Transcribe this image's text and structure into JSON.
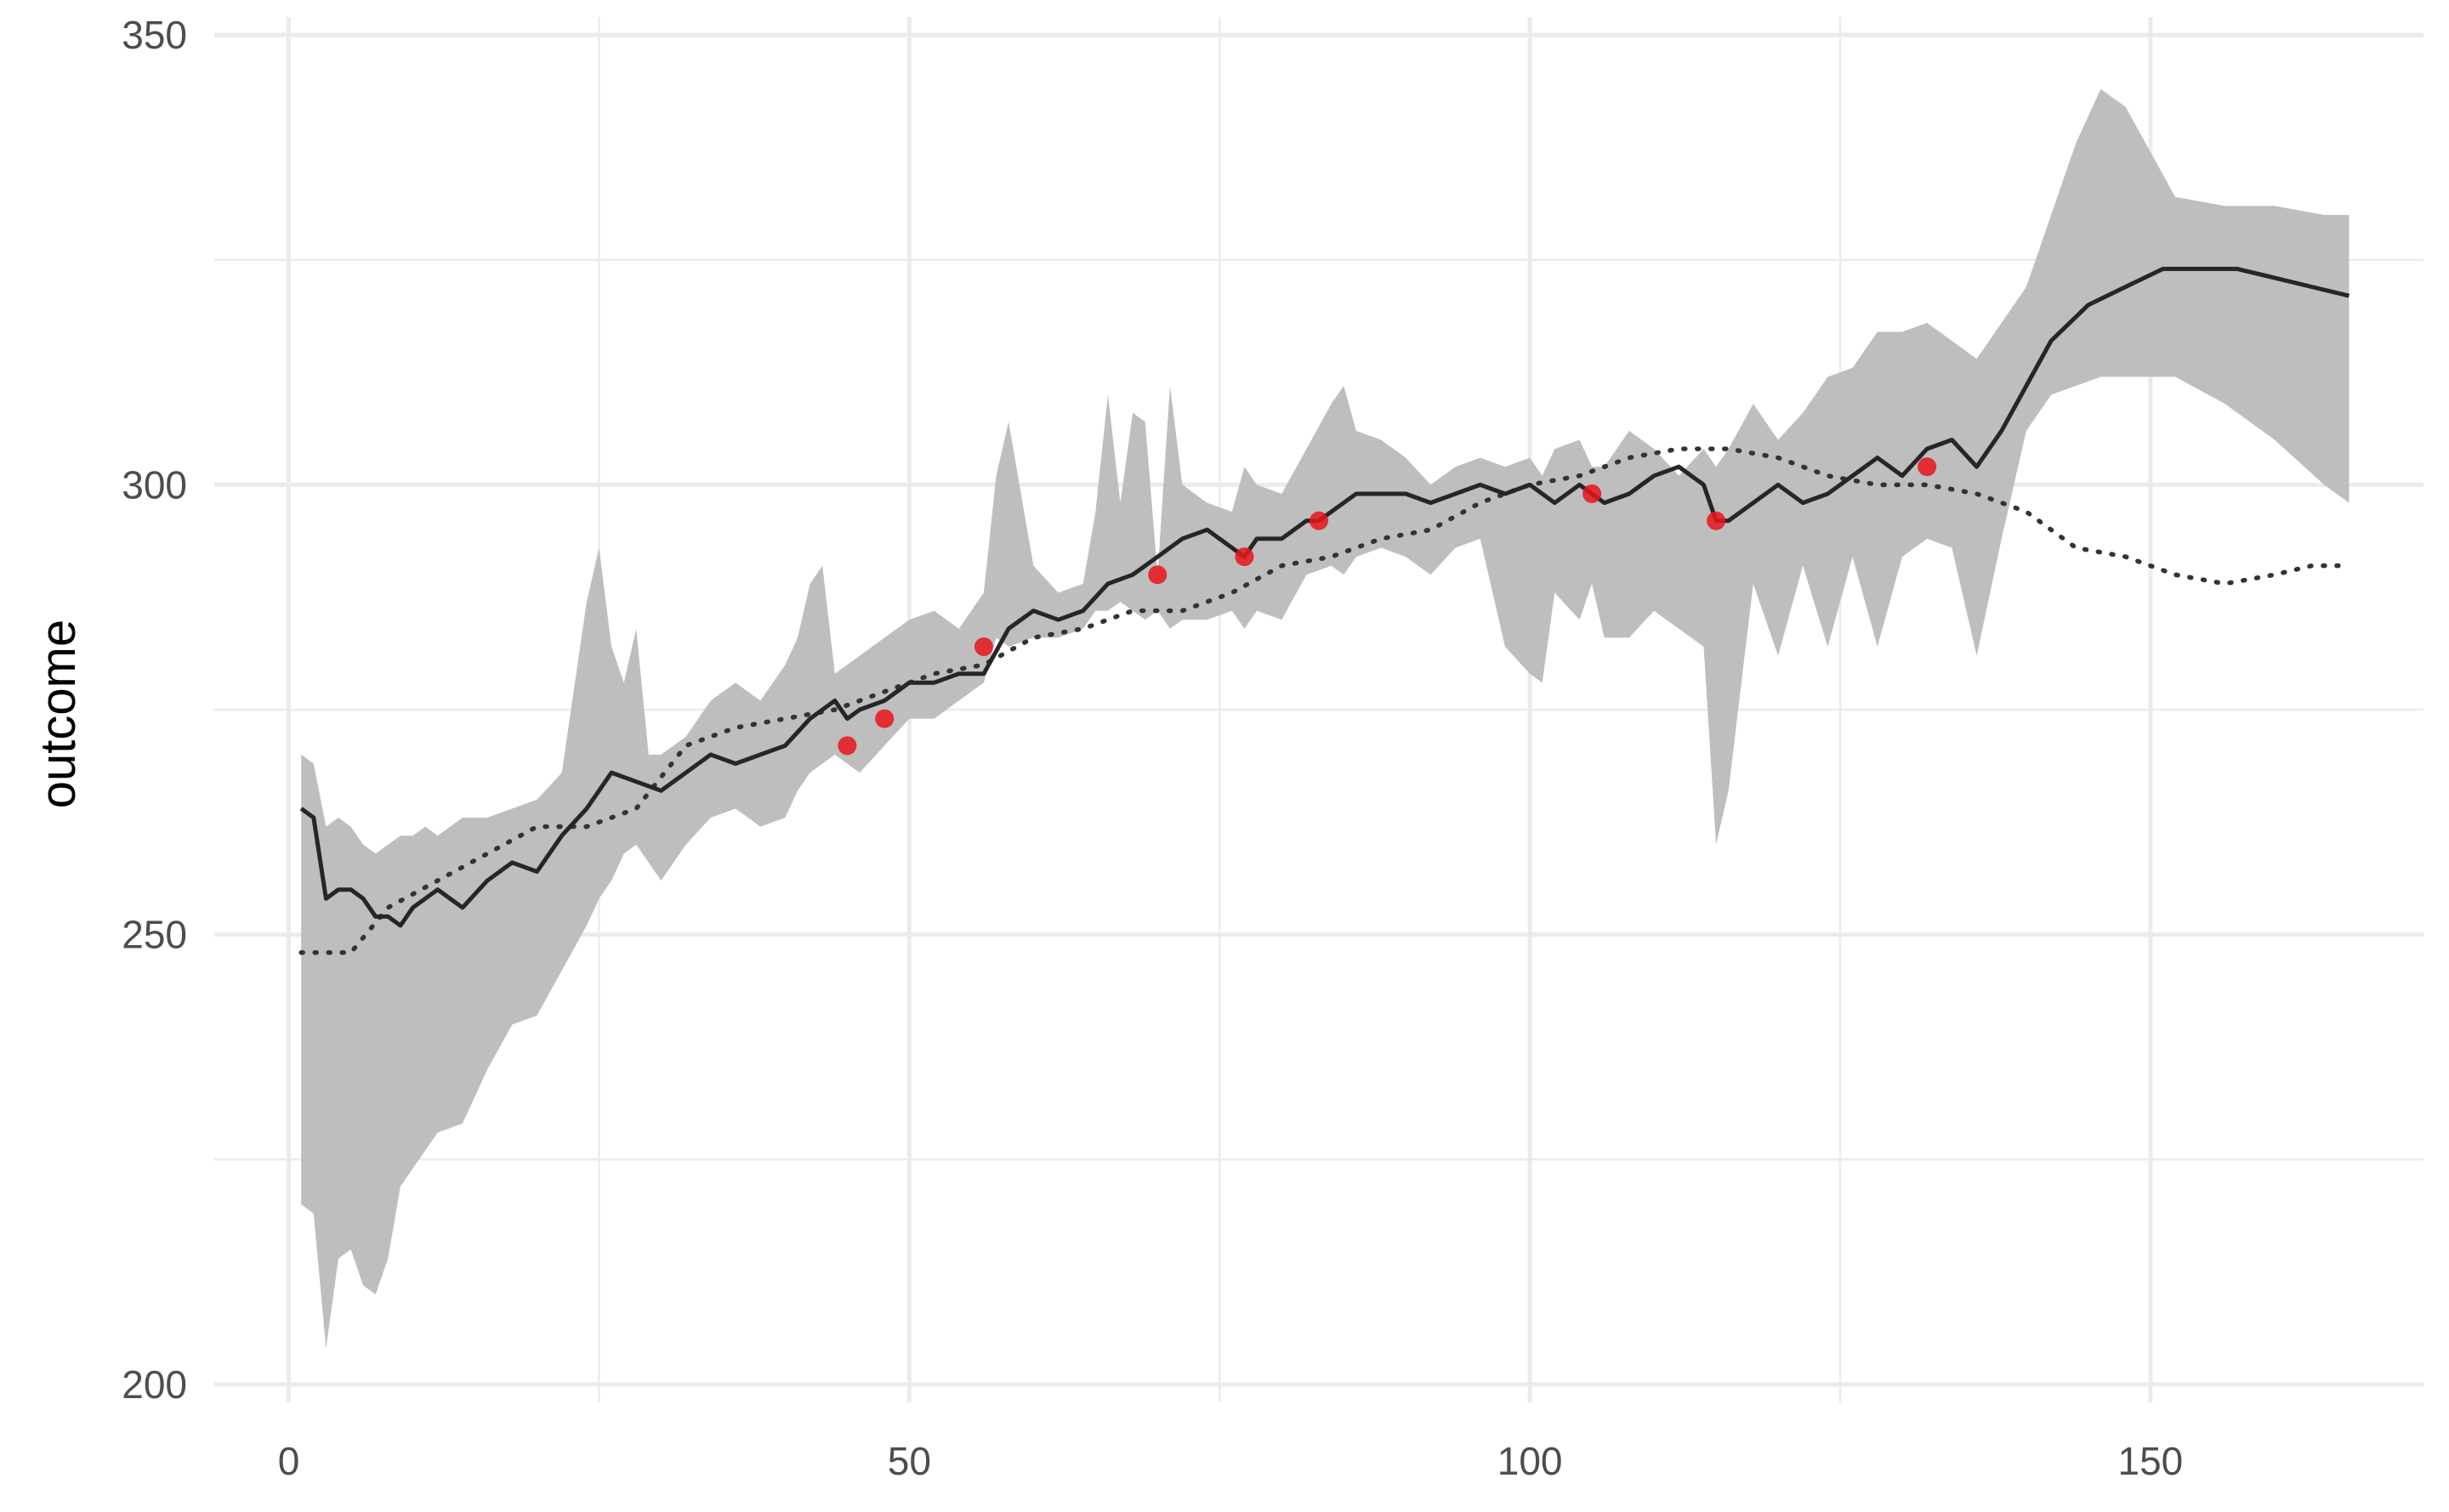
{
  "chart_data": {
    "type": "line",
    "title": "",
    "xlabel": "",
    "ylabel": "outcome",
    "xlim": [
      -6,
      172
    ],
    "ylim": [
      198,
      352
    ],
    "x_ticks": [
      0,
      50,
      100,
      150
    ],
    "x_tick_labels": [
      "0",
      "50",
      "100",
      "150"
    ],
    "x_minor_ticks": [
      25,
      75,
      125
    ],
    "y_ticks": [
      200,
      250,
      300,
      350
    ],
    "y_tick_labels": [
      "200",
      "250",
      "300",
      "350"
    ],
    "y_minor_ticks": [
      225,
      275,
      325
    ],
    "grid": true,
    "colors": {
      "band": "#bebebe",
      "line": "#262626",
      "dotted": "#333333",
      "points": "#e8141c",
      "grid": "#ebebeb"
    },
    "series": [
      {
        "style": "solid",
        "x": [
          1,
          2,
          3,
          4,
          5,
          6,
          7,
          8,
          9,
          10,
          12,
          14,
          16,
          18,
          20,
          22,
          24,
          26,
          28,
          30,
          32,
          34,
          36,
          38,
          40,
          42,
          44,
          45,
          46,
          48,
          50,
          52,
          54,
          56,
          58,
          60,
          62,
          64,
          66,
          68,
          70,
          72,
          74,
          76,
          77,
          78,
          80,
          82,
          83,
          84,
          86,
          88,
          90,
          92,
          94,
          96,
          98,
          100,
          102,
          104,
          105,
          106,
          108,
          110,
          112,
          114,
          115,
          116,
          118,
          120,
          122,
          124,
          126,
          128,
          130,
          132,
          134,
          136,
          138,
          140,
          142,
          145,
          148,
          151,
          154,
          157,
          160,
          163,
          166
        ],
        "values": [
          264,
          263,
          254,
          255,
          255,
          254,
          252,
          252,
          251,
          253,
          255,
          253,
          256,
          258,
          257,
          261,
          264,
          268,
          267,
          266,
          268,
          270,
          269,
          270,
          271,
          274,
          276,
          274,
          275,
          276,
          278,
          278,
          279,
          279,
          284,
          286,
          285,
          286,
          289,
          290,
          292,
          294,
          295,
          293,
          292,
          294,
          294,
          296,
          296,
          297,
          299,
          299,
          299,
          298,
          299,
          300,
          299,
          300,
          298,
          300,
          299,
          298,
          299,
          301,
          302,
          300,
          296,
          296,
          298,
          300,
          298,
          299,
          301,
          303,
          301,
          304,
          305,
          302,
          306,
          311,
          316,
          320,
          322,
          324,
          324,
          324,
          323,
          322,
          321
        ]
      },
      {
        "style": "dotted",
        "x": [
          1,
          5,
          8,
          12,
          16,
          20,
          24,
          28,
          32,
          36,
          40,
          44,
          48,
          52,
          56,
          60,
          64,
          68,
          72,
          76,
          80,
          84,
          88,
          92,
          96,
          100,
          104,
          108,
          112,
          116,
          120,
          124,
          128,
          132,
          136,
          140,
          144,
          148,
          152,
          156,
          160,
          163,
          166
        ],
        "values": [
          248,
          248,
          253,
          256,
          259,
          262,
          262,
          264,
          271,
          273,
          274,
          275,
          277,
          279,
          280,
          283,
          284,
          286,
          286,
          288,
          291,
          292,
          294,
          295,
          298,
          300,
          301,
          303,
          304,
          304,
          303,
          301,
          300,
          300,
          299,
          297,
          293,
          292,
          290,
          289,
          290,
          291,
          291
        ]
      }
    ],
    "band": {
      "x": [
        1,
        2,
        3,
        4,
        5,
        6,
        7,
        8,
        9,
        10,
        11,
        12,
        14,
        16,
        18,
        20,
        22,
        24,
        25,
        26,
        27,
        28,
        29,
        30,
        32,
        34,
        36,
        38,
        40,
        41,
        42,
        43,
        44,
        46,
        48,
        50,
        52,
        54,
        56,
        57,
        58,
        60,
        62,
        64,
        65,
        66,
        67,
        68,
        69,
        70,
        71,
        72,
        74,
        76,
        77,
        78,
        80,
        82,
        84,
        85,
        86,
        88,
        90,
        92,
        94,
        96,
        98,
        100,
        101,
        102,
        104,
        105,
        106,
        108,
        110,
        112,
        114,
        115,
        116,
        118,
        120,
        122,
        124,
        126,
        128,
        130,
        132,
        134,
        136,
        138,
        140,
        142,
        144,
        146,
        148,
        150,
        152,
        156,
        160,
        164,
        166
      ],
      "upper": [
        270,
        269,
        262,
        263,
        262,
        260,
        259,
        260,
        261,
        261,
        262,
        261,
        263,
        263,
        264,
        265,
        268,
        287,
        293,
        282,
        278,
        284,
        270,
        270,
        272,
        276,
        278,
        276,
        280,
        283,
        289,
        291,
        279,
        281,
        283,
        285,
        286,
        284,
        288,
        301,
        307,
        291,
        288,
        289,
        297,
        310,
        298,
        308,
        307,
        290,
        311,
        300,
        298,
        297,
        302,
        300,
        299,
        304,
        309,
        311,
        306,
        305,
        303,
        300,
        302,
        303,
        302,
        303,
        301,
        304,
        305,
        302,
        302,
        306,
        304,
        301,
        304,
        302,
        304,
        309,
        305,
        308,
        312,
        313,
        317,
        317,
        318,
        316,
        314,
        318,
        322,
        330,
        338,
        344,
        342,
        337,
        332,
        331,
        331,
        330,
        330
      ],
      "lower": [
        220,
        219,
        204,
        214,
        215,
        211,
        210,
        214,
        222,
        224,
        226,
        228,
        229,
        235,
        240,
        241,
        246,
        251,
        254,
        256,
        259,
        260,
        258,
        256,
        260,
        263,
        264,
        262,
        263,
        266,
        268,
        269,
        270,
        268,
        271,
        274,
        274,
        276,
        278,
        283,
        282,
        283,
        283,
        284,
        286,
        286,
        287,
        286,
        285,
        286,
        284,
        285,
        285,
        286,
        284,
        286,
        285,
        290,
        291,
        290,
        292,
        293,
        292,
        290,
        293,
        294,
        282,
        279,
        278,
        288,
        285,
        289,
        283,
        283,
        286,
        284,
        282,
        260,
        266,
        289,
        281,
        291,
        282,
        292,
        282,
        292,
        294,
        293,
        281,
        294,
        306,
        310,
        311,
        312,
        312,
        312,
        312,
        309,
        305,
        300,
        298
      ]
    },
    "points": {
      "x": [
        45,
        48,
        56,
        70,
        77,
        83,
        105,
        115,
        132
      ],
      "y": [
        271,
        274,
        282,
        290,
        292,
        296,
        299,
        296,
        302
      ]
    }
  }
}
